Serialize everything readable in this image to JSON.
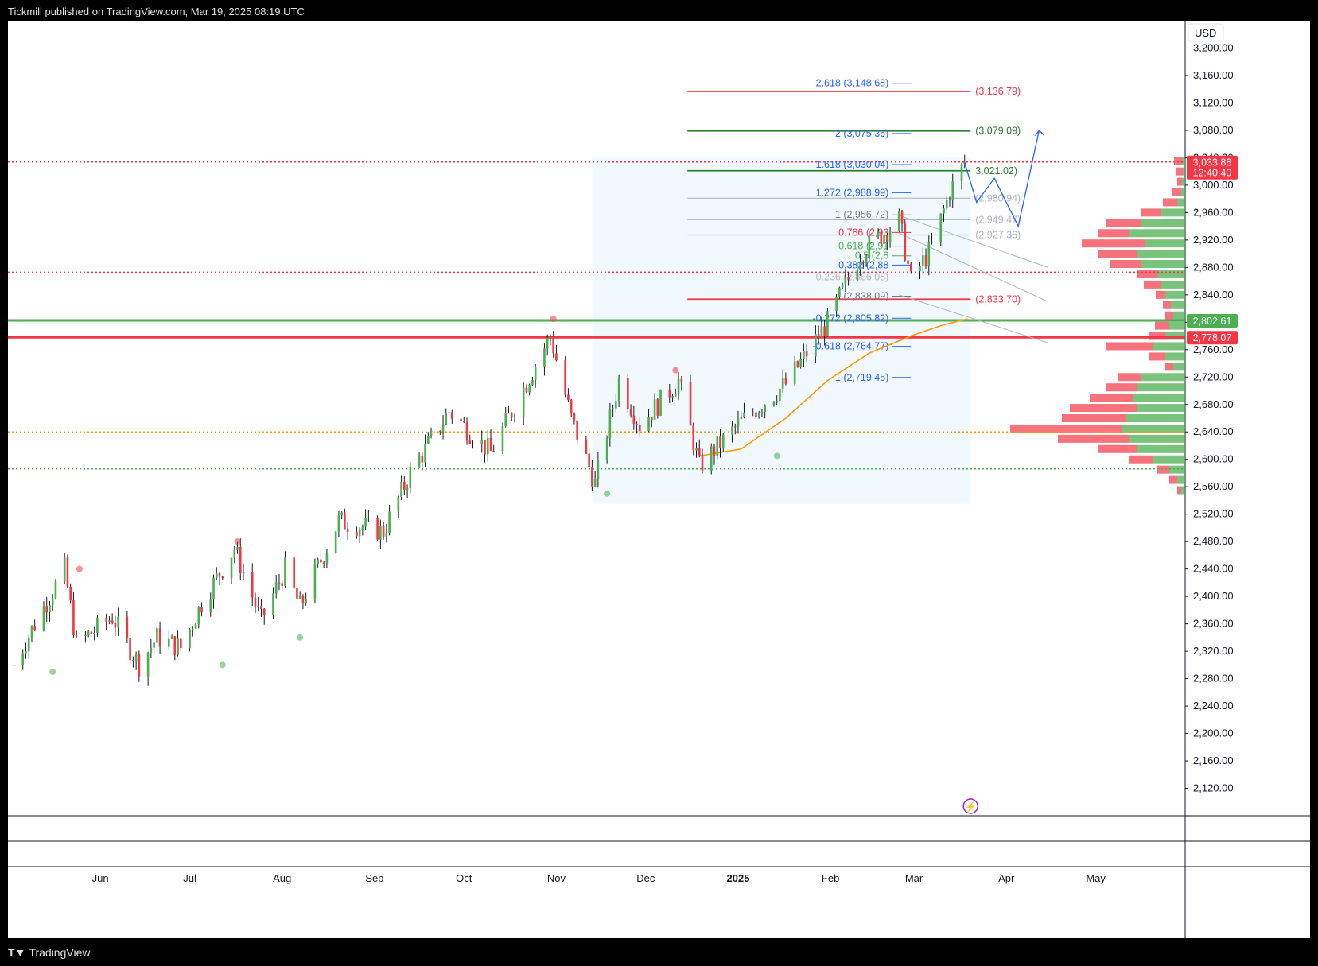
{
  "header": {
    "publisher": "Tickmill published on TradingView.com, Mar 19, 2025 08:19 UTC"
  },
  "footer": {
    "brand": "TradingView"
  },
  "chart_data": {
    "type": "candlestick",
    "currency": "USD",
    "ylim": [
      2080,
      3240
    ],
    "y_ticks": [
      2120,
      2160,
      2200,
      2240,
      2280,
      2320,
      2360,
      2400,
      2440,
      2480,
      2520,
      2560,
      2600,
      2640,
      2680,
      2720,
      2760,
      2800,
      2840,
      2880,
      2920,
      2960,
      3000,
      3040,
      3080,
      3120,
      3160,
      3200
    ],
    "x_labels": [
      {
        "text": "Jun",
        "date": "2024-06-01"
      },
      {
        "text": "Jul",
        "date": "2024-07-01"
      },
      {
        "text": "Aug",
        "date": "2024-08-01"
      },
      {
        "text": "Sep",
        "date": "2024-09-01"
      },
      {
        "text": "Oct",
        "date": "2024-10-01"
      },
      {
        "text": "Nov",
        "date": "2024-11-01"
      },
      {
        "text": "Dec",
        "date": "2024-12-01"
      },
      {
        "text": "2025",
        "date": "2025-01-01"
      },
      {
        "text": "Feb",
        "date": "2025-02-01"
      },
      {
        "text": "Mar",
        "date": "2025-03-01"
      },
      {
        "text": "Apr",
        "date": "2025-04-01"
      },
      {
        "text": "May",
        "date": "2025-05-01"
      }
    ],
    "price_path": [
      [
        "2024-05-03",
        2300
      ],
      [
        "2024-05-10",
        2360
      ],
      [
        "2024-05-20",
        2440
      ],
      [
        "2024-05-24",
        2330
      ],
      [
        "2024-06-05",
        2370
      ],
      [
        "2024-06-14",
        2300
      ],
      [
        "2024-06-20",
        2340
      ],
      [
        "2024-06-28",
        2325
      ],
      [
        "2024-07-05",
        2390
      ],
      [
        "2024-07-16",
        2470
      ],
      [
        "2024-07-25",
        2365
      ],
      [
        "2024-08-02",
        2440
      ],
      [
        "2024-08-07",
        2385
      ],
      [
        "2024-08-20",
        2510
      ],
      [
        "2024-09-04",
        2495
      ],
      [
        "2024-09-13",
        2580
      ],
      [
        "2024-09-26",
        2670
      ],
      [
        "2024-10-10",
        2610
      ],
      [
        "2024-10-30",
        2780
      ],
      [
        "2024-11-06",
        2660
      ],
      [
        "2024-11-14",
        2565
      ],
      [
        "2024-11-22",
        2715
      ],
      [
        "2024-11-29",
        2650
      ],
      [
        "2024-12-12",
        2715
      ],
      [
        "2024-12-19",
        2590
      ],
      [
        "2025-01-02",
        2655
      ],
      [
        "2025-01-17",
        2710
      ],
      [
        "2025-01-31",
        2800
      ],
      [
        "2025-02-11",
        2900
      ],
      [
        "2025-02-24",
        2950
      ],
      [
        "2025-02-28",
        2860
      ],
      [
        "2025-03-07",
        2910
      ],
      [
        "2025-03-13",
        2990
      ],
      [
        "2025-03-18",
        3033
      ]
    ],
    "moving_average": [
      [
        "2024-12-19",
        2605
      ],
      [
        "2025-01-02",
        2615
      ],
      [
        "2025-01-17",
        2660
      ],
      [
        "2025-01-31",
        2715
      ],
      [
        "2025-02-14",
        2755
      ],
      [
        "2025-02-28",
        2780
      ],
      [
        "2025-03-10",
        2795
      ],
      [
        "2025-03-19",
        2805
      ]
    ],
    "pivot_markers": [
      {
        "date": "2024-05-16",
        "price": 2290,
        "kind": "low"
      },
      {
        "date": "2024-05-25",
        "price": 2440,
        "kind": "high"
      },
      {
        "date": "2024-07-12",
        "price": 2300,
        "kind": "low"
      },
      {
        "date": "2024-07-17",
        "price": 2480,
        "kind": "high"
      },
      {
        "date": "2024-08-07",
        "price": 2340,
        "kind": "low"
      },
      {
        "date": "2024-10-31",
        "price": 2805,
        "kind": "high"
      },
      {
        "date": "2024-11-18",
        "price": 2550,
        "kind": "low"
      },
      {
        "date": "2024-12-11",
        "price": 2730,
        "kind": "high"
      },
      {
        "date": "2025-01-14",
        "price": 2605,
        "kind": "low"
      }
    ],
    "horizontal_levels": [
      {
        "price": 3033.88,
        "color": "#f23645",
        "style": "dotted",
        "tag": "3,033.88",
        "tag2": "12:40:40"
      },
      {
        "price": 2873,
        "color": "#f23645",
        "style": "dotted"
      },
      {
        "price": 2640,
        "color": "#ff9800",
        "style": "dotted"
      },
      {
        "price": 2586,
        "color": "#4caf50",
        "style": "dotted"
      },
      {
        "price": 2802.61,
        "color": "#4caf50",
        "style": "solid",
        "tag": "2,802.61"
      },
      {
        "price": 2778.07,
        "color": "#f23645",
        "style": "solid",
        "tag": "2,778.07"
      }
    ],
    "fib_extension": [
      {
        "label": "2.618 (3,148.68)",
        "price": 3148.68,
        "color": "#2962ff"
      },
      {
        "label": "2 (3,075.36)",
        "price": 3075.36,
        "color": "#2962ff"
      },
      {
        "label": "1.618 (3,030.04)",
        "price": 3030.04,
        "color": "#2962ff"
      },
      {
        "label": "1.272 (2,988.99)",
        "price": 2988.99,
        "color": "#2962ff"
      },
      {
        "label": "1 (2,956.72)",
        "price": 2956.72,
        "color": "#787b86"
      },
      {
        "label": "0.786 (2,93",
        "price": 2931,
        "color": "#f23645"
      },
      {
        "label": "0.618 (2,91",
        "price": 2911,
        "color": "#4caf50"
      },
      {
        "label": "0.5 (2,8",
        "price": 2897,
        "color": "#4caf50"
      },
      {
        "label": "0.382 (2,88",
        "price": 2883.41,
        "color": "#2962ff"
      },
      {
        "label": "0.236 (2,866.08)",
        "price": 2866.08,
        "color": "#b2b5be"
      },
      {
        "label": "(2,838.09)",
        "price": 2838.09,
        "color": "#787b86"
      },
      {
        "label": "-0.272 (2,805.82)",
        "price": 2805.82,
        "color": "#2962ff"
      },
      {
        "label": "-0.618 (2,764.77)",
        "price": 2764.77,
        "color": "#2962ff"
      },
      {
        "label": "-1 (2,719.45)",
        "price": 2719.45,
        "color": "#2962ff"
      }
    ],
    "target_lines": [
      {
        "price": 3136.79,
        "label": "(3,136.79)",
        "color": "#f23645"
      },
      {
        "price": 3079.09,
        "label": "(3,079.09)",
        "color": "#2e7d32"
      },
      {
        "price": 3021.02,
        "label": "3,021.02)",
        "color": "#2e7d32"
      },
      {
        "price": 2980.94,
        "label": "(2,980.94)",
        "color": "#b2b5be"
      },
      {
        "price": 2949.47,
        "label": "(2,949.47)",
        "color": "#b2b5be"
      },
      {
        "price": 2927.36,
        "label": "(2,927.36)",
        "color": "#b2b5be"
      },
      {
        "price": 2833.7,
        "label": "(2,833.70)",
        "color": "#f23645"
      }
    ],
    "projection_path": [
      [
        "2025-03-18",
        3033
      ],
      [
        "2025-03-22",
        2975
      ],
      [
        "2025-03-28",
        3010
      ],
      [
        "2025-04-05",
        2940
      ],
      [
        "2025-04-12",
        3080
      ]
    ],
    "highlight_box": {
      "from": "2024-11-13",
      "to": "2025-03-20",
      "top": 3040,
      "bottom": 2535
    },
    "volume_profile": [
      {
        "price": 3035,
        "buy": 4,
        "sell": 10
      },
      {
        "price": 3020,
        "buy": 3,
        "sell": 8
      },
      {
        "price": 3005,
        "buy": 4,
        "sell": 6
      },
      {
        "price": 2990,
        "buy": 5,
        "sell": 12
      },
      {
        "price": 2975,
        "buy": 10,
        "sell": 18
      },
      {
        "price": 2960,
        "buy": 30,
        "sell": 25
      },
      {
        "price": 2945,
        "buy": 55,
        "sell": 45
      },
      {
        "price": 2930,
        "buy": 70,
        "sell": 40
      },
      {
        "price": 2915,
        "buy": 50,
        "sell": 80
      },
      {
        "price": 2900,
        "buy": 60,
        "sell": 50
      },
      {
        "price": 2885,
        "buy": 55,
        "sell": 40
      },
      {
        "price": 2870,
        "buy": 35,
        "sell": 25
      },
      {
        "price": 2855,
        "buy": 30,
        "sell": 22
      },
      {
        "price": 2840,
        "buy": 25,
        "sell": 12
      },
      {
        "price": 2825,
        "buy": 18,
        "sell": 10
      },
      {
        "price": 2810,
        "buy": 15,
        "sell": 10
      },
      {
        "price": 2795,
        "buy": 20,
        "sell": 18
      },
      {
        "price": 2780,
        "buy": 25,
        "sell": 20
      },
      {
        "price": 2765,
        "buy": 40,
        "sell": 60
      },
      {
        "price": 2750,
        "buy": 25,
        "sell": 20
      },
      {
        "price": 2735,
        "buy": 15,
        "sell": 10
      },
      {
        "price": 2720,
        "buy": 55,
        "sell": 30
      },
      {
        "price": 2705,
        "buy": 60,
        "sell": 40
      },
      {
        "price": 2690,
        "buy": 65,
        "sell": 55
      },
      {
        "price": 2675,
        "buy": 60,
        "sell": 85
      },
      {
        "price": 2660,
        "buy": 75,
        "sell": 80
      },
      {
        "price": 2645,
        "buy": 80,
        "sell": 140
      },
      {
        "price": 2630,
        "buy": 70,
        "sell": 90
      },
      {
        "price": 2615,
        "buy": 60,
        "sell": 50
      },
      {
        "price": 2600,
        "buy": 40,
        "sell": 30
      },
      {
        "price": 2585,
        "buy": 20,
        "sell": 15
      },
      {
        "price": 2570,
        "buy": 10,
        "sell": 10
      },
      {
        "price": 2555,
        "buy": 5,
        "sell": 5
      }
    ]
  }
}
